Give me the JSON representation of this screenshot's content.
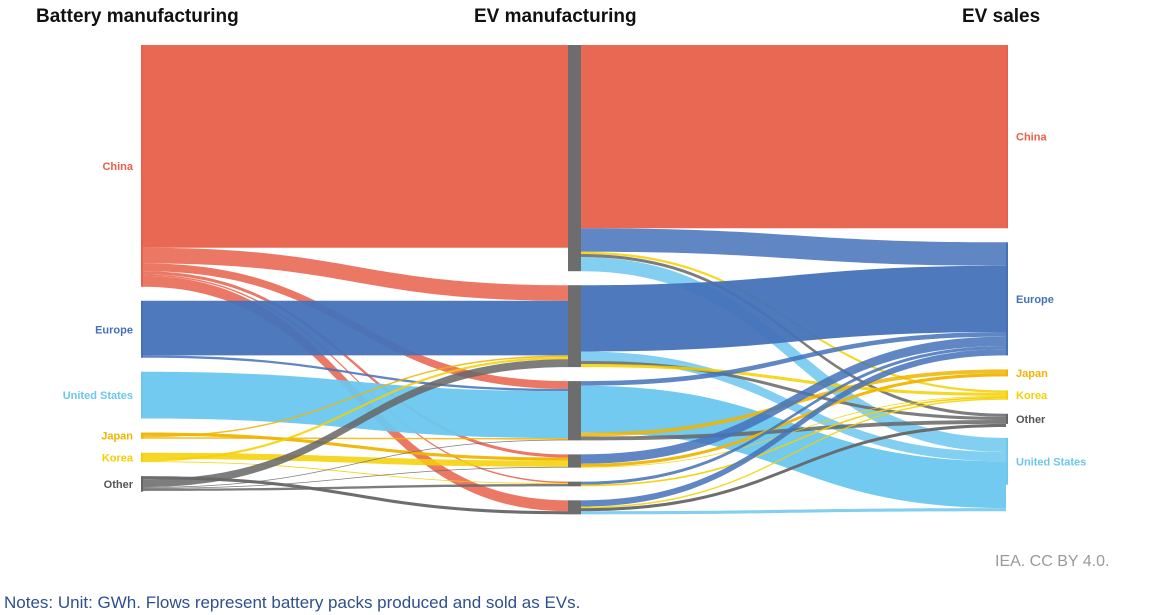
{
  "colors": {
    "China": "#e8604a",
    "Europe": "#4472b9",
    "United States": "#6cc7ef",
    "Japan": "#f0b400",
    "Korea": "#f5d000",
    "Other": "#666666",
    "bar": "#6d6d6d"
  },
  "headers": {
    "battery": "Battery manufacturing",
    "ev_manufacturing": "EV manufacturing",
    "ev_sales": "EV sales"
  },
  "chart_data": {
    "type": "sankey",
    "unit": "GWh",
    "columns": [
      "Battery manufacturing",
      "EV manufacturing",
      "EV sales"
    ],
    "nodes": {
      "battery": [
        {
          "name": "China",
          "label": "China",
          "value": 310
        },
        {
          "name": "Europe",
          "label": "Europe",
          "value": 73
        },
        {
          "name": "United States",
          "label": "United States",
          "value": 60
        },
        {
          "name": "Japan",
          "label": "Japan",
          "value": 8
        },
        {
          "name": "Korea",
          "label": "Korea",
          "value": 12
        },
        {
          "name": "Other",
          "label": "Other",
          "value": 20
        }
      ],
      "manufacturing": [
        {
          "name": "China",
          "value": 290
        },
        {
          "name": "Europe",
          "value": 105
        },
        {
          "name": "United States",
          "value": 76
        },
        {
          "name": "Japan",
          "value": 17
        },
        {
          "name": "Korea",
          "value": 6
        },
        {
          "name": "Other",
          "value": 18
        }
      ],
      "sales": [
        {
          "name": "China",
          "label": "China",
          "value": 235
        },
        {
          "name": "Europe",
          "label": "Europe",
          "value": 145
        },
        {
          "name": "Japan",
          "label": "Japan",
          "value": 9
        },
        {
          "name": "Korea",
          "label": "Korea",
          "value": 12
        },
        {
          "name": "Other",
          "label": "Other",
          "value": 13
        },
        {
          "name": "United States",
          "label": "United States",
          "value": 60
        }
      ]
    },
    "flows_stage1": [
      {
        "from": "China",
        "to": "China",
        "value": 260
      },
      {
        "from": "China",
        "to": "Europe",
        "value": 20
      },
      {
        "from": "China",
        "to": "United States",
        "value": 10
      },
      {
        "from": "China",
        "to": "Japan",
        "value": 4
      },
      {
        "from": "China",
        "to": "Korea",
        "value": 2
      },
      {
        "from": "China",
        "to": "Other",
        "value": 14
      },
      {
        "from": "Europe",
        "to": "Europe",
        "value": 70
      },
      {
        "from": "Europe",
        "to": "United States",
        "value": 3
      },
      {
        "from": "United States",
        "to": "United States",
        "value": 60
      },
      {
        "from": "Japan",
        "to": "Japan",
        "value": 4
      },
      {
        "from": "Japan",
        "to": "Europe",
        "value": 2
      },
      {
        "from": "Japan",
        "to": "United States",
        "value": 2
      },
      {
        "from": "Korea",
        "to": "Japan",
        "value": 8
      },
      {
        "from": "Korea",
        "to": "Europe",
        "value": 3
      },
      {
        "from": "Korea",
        "to": "Korea",
        "value": 1
      },
      {
        "from": "Other",
        "to": "Other",
        "value": 4
      },
      {
        "from": "Other",
        "to": "Europe",
        "value": 10
      },
      {
        "from": "Other",
        "to": "United States",
        "value": 1
      },
      {
        "from": "Other",
        "to": "Japan",
        "value": 1
      },
      {
        "from": "Other",
        "to": "Korea",
        "value": 3
      }
    ],
    "flows_stage2": [
      {
        "from": "China",
        "to": "China",
        "value": 235
      },
      {
        "from": "China",
        "to": "Europe",
        "value": 30
      },
      {
        "from": "China",
        "to": "Korea",
        "value": 3
      },
      {
        "from": "China",
        "to": "Other",
        "value": 4
      },
      {
        "from": "China",
        "to": "United States",
        "value": 18
      },
      {
        "from": "Europe",
        "to": "Europe",
        "value": 85
      },
      {
        "from": "Europe",
        "to": "United States",
        "value": 12
      },
      {
        "from": "Europe",
        "to": "Other",
        "value": 4
      },
      {
        "from": "Europe",
        "to": "Korea",
        "value": 4
      },
      {
        "from": "United States",
        "to": "Europe",
        "value": 6
      },
      {
        "from": "United States",
        "to": "United States",
        "value": 60
      },
      {
        "from": "United States",
        "to": "Japan",
        "value": 5
      },
      {
        "from": "United States",
        "to": "Other",
        "value": 5
      },
      {
        "from": "Japan",
        "to": "Europe",
        "value": 12
      },
      {
        "from": "Japan",
        "to": "Japan",
        "value": 4
      },
      {
        "from": "Japan",
        "to": "Korea",
        "value": 1
      },
      {
        "from": "Korea",
        "to": "Europe",
        "value": 4
      },
      {
        "from": "Korea",
        "to": "Korea",
        "value": 2
      },
      {
        "from": "Other",
        "to": "Europe",
        "value": 8
      },
      {
        "from": "Other",
        "to": "Korea",
        "value": 2
      },
      {
        "from": "Other",
        "to": "Other",
        "value": 4
      },
      {
        "from": "Other",
        "to": "China",
        "value": 0
      },
      {
        "from": "Other",
        "to": "United States",
        "value": 4
      }
    ]
  },
  "footer": {
    "credit": "IEA. CC BY 4.0.",
    "notes": "Notes: Unit: GWh. Flows represent battery packs produced and sold as EVs."
  }
}
